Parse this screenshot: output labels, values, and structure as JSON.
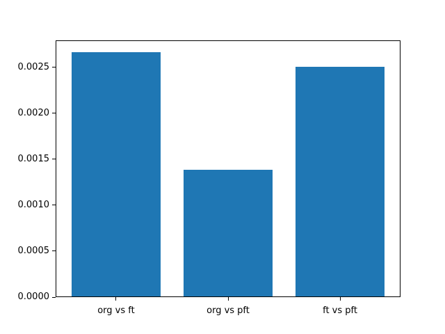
{
  "chart_data": {
    "type": "bar",
    "title": "",
    "xlabel": "",
    "ylabel": "",
    "categories": [
      "org vs ft",
      "org vs pft",
      "ft vs pft"
    ],
    "values": [
      0.00266,
      0.00138,
      0.0025
    ],
    "yticks": [
      {
        "value": 0.0,
        "label": "0.0000"
      },
      {
        "value": 0.0005,
        "label": "0.0005"
      },
      {
        "value": 0.001,
        "label": "0.0010"
      },
      {
        "value": 0.0015,
        "label": "0.0015"
      },
      {
        "value": 0.002,
        "label": "0.0020"
      },
      {
        "value": 0.0025,
        "label": "0.0025"
      }
    ],
    "ylim": [
      0,
      0.002793
    ],
    "xlim": [
      -0.54,
      2.54
    ],
    "bar_width_data_units": 0.8,
    "bar_color": "#1f77b4",
    "spine_color": "#000000",
    "background_color": "#ffffff",
    "grid": false,
    "legend": false
  }
}
